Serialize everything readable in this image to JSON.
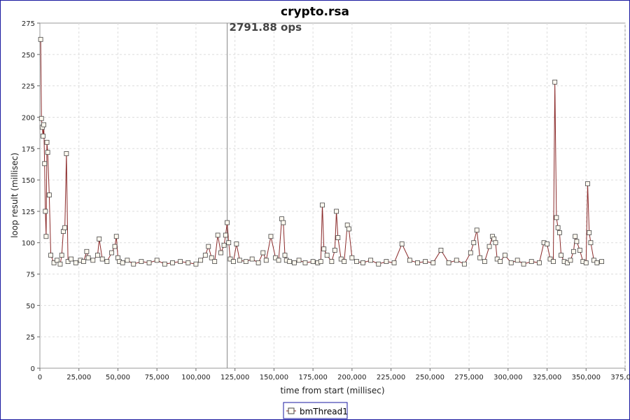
{
  "chart_data": {
    "type": "line",
    "title": "crypto.rsa",
    "xlabel": "time from start (millisec)",
    "ylabel": "loop result (millisec)",
    "xlim": [
      0,
      375000
    ],
    "ylim": [
      0,
      275
    ],
    "x_ticks": [
      0,
      25000,
      50000,
      75000,
      100000,
      125000,
      150000,
      175000,
      200000,
      225000,
      250000,
      275000,
      300000,
      325000,
      350000,
      375000
    ],
    "x_tick_labels": [
      "0",
      "25,000",
      "50,000",
      "75,000",
      "100,000",
      "125,000",
      "150,000",
      "175,000",
      "200,000",
      "225,000",
      "250,000",
      "275,000",
      "300,000",
      "325,000",
      "350,000",
      "375,000"
    ],
    "y_ticks": [
      0,
      25,
      50,
      75,
      100,
      125,
      150,
      175,
      200,
      225,
      250,
      275
    ],
    "y_tick_labels": [
      "0",
      "25",
      "50",
      "75",
      "100",
      "125",
      "150",
      "175",
      "200",
      "225",
      "250",
      "275"
    ],
    "grid": true,
    "legend_position": "bottom-center",
    "series_color": "#8b2a2a",
    "annotation": {
      "x": 120000,
      "label": "2791.88 ops"
    },
    "series": [
      {
        "name": "bmThread1",
        "x": [
          500,
          1000,
          1500,
          2000,
          2500,
          3000,
          3500,
          4000,
          4500,
          5000,
          6000,
          7000,
          9000,
          11000,
          13000,
          14000,
          15000,
          16000,
          17000,
          18000,
          20000,
          23000,
          26000,
          28000,
          30000,
          31000,
          34000,
          37000,
          38000,
          40000,
          43000,
          46000,
          48000,
          49000,
          50000,
          51000,
          53000,
          56000,
          60000,
          65000,
          70000,
          75000,
          80000,
          85000,
          90000,
          95000,
          100000,
          103000,
          106000,
          108000,
          110000,
          112000,
          114000,
          116000,
          118000,
          119000,
          120000,
          121000,
          122000,
          124000,
          126000,
          128000,
          132000,
          136000,
          140000,
          143000,
          145000,
          148000,
          151000,
          153000,
          155000,
          156000,
          157000,
          158000,
          160000,
          163000,
          166000,
          170000,
          175000,
          178000,
          180000,
          181000,
          182000,
          184000,
          187000,
          189000,
          190000,
          191000,
          193000,
          195000,
          197000,
          198000,
          200000,
          203000,
          207000,
          212000,
          217000,
          222000,
          227000,
          232000,
          237000,
          242000,
          247000,
          252000,
          257000,
          262000,
          267000,
          272000,
          276000,
          278000,
          280000,
          282000,
          285000,
          288000,
          290000,
          291000,
          292000,
          293000,
          295000,
          298000,
          302000,
          306000,
          310000,
          315000,
          320000,
          323000,
          325000,
          327000,
          329000,
          330000,
          331000,
          332000,
          333000,
          334000,
          336000,
          338000,
          340000,
          342000,
          343000,
          344000,
          346000,
          348000,
          350000,
          351000,
          352000,
          353000,
          355000,
          357000,
          360000
        ],
        "values": [
          262,
          199,
          192,
          185,
          194,
          163,
          125,
          105,
          180,
          172,
          138,
          90,
          84,
          86,
          83,
          90,
          109,
          112,
          171,
          85,
          87,
          84,
          86,
          85,
          93,
          88,
          86,
          90,
          103,
          87,
          85,
          92,
          97,
          105,
          88,
          85,
          84,
          86,
          83,
          85,
          84,
          86,
          83,
          84,
          85,
          84,
          83,
          86,
          90,
          97,
          88,
          85,
          106,
          92,
          98,
          106,
          116,
          100,
          87,
          85,
          99,
          86,
          85,
          87,
          84,
          92,
          86,
          105,
          88,
          86,
          119,
          116,
          90,
          86,
          85,
          84,
          86,
          84,
          85,
          84,
          85,
          130,
          95,
          90,
          85,
          94,
          125,
          104,
          87,
          85,
          114,
          111,
          88,
          85,
          84,
          86,
          83,
          85,
          84,
          99,
          86,
          84,
          85,
          84,
          94,
          84,
          86,
          83,
          92,
          100,
          110,
          88,
          85,
          97,
          105,
          103,
          100,
          87,
          85,
          90,
          84,
          86,
          83,
          85,
          84,
          100,
          99,
          87,
          85,
          228,
          120,
          112,
          108,
          90,
          85,
          84,
          86,
          93,
          105,
          101,
          94,
          85,
          84,
          147,
          108,
          100,
          86,
          84,
          85
        ]
      }
    ]
  }
}
